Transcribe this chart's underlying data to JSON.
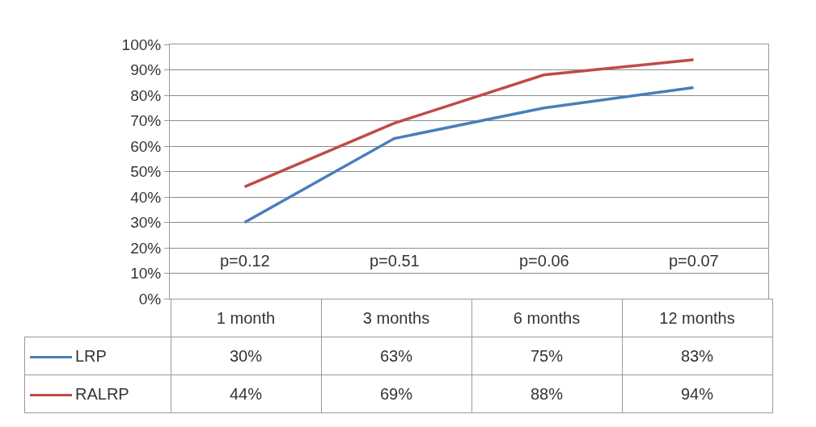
{
  "chart_data": {
    "type": "line",
    "categories": [
      "1 month",
      "3 months",
      "6 months",
      "12 months"
    ],
    "series": [
      {
        "name": "LRP",
        "color": "#4a7ebb",
        "values": [
          30,
          63,
          75,
          83
        ],
        "value_labels": [
          "30%",
          "63%",
          "75%",
          "83%"
        ]
      },
      {
        "name": "RALRP",
        "color": "#be4b48",
        "values": [
          44,
          69,
          88,
          94
        ],
        "value_labels": [
          "44%",
          "69%",
          "88%",
          "94%"
        ]
      }
    ],
    "ylim": [
      0,
      100
    ],
    "yticks": [
      {
        "value": 0,
        "label": "0%"
      },
      {
        "value": 10,
        "label": "10%"
      },
      {
        "value": 20,
        "label": "20%"
      },
      {
        "value": 30,
        "label": "30%"
      },
      {
        "value": 40,
        "label": "40%"
      },
      {
        "value": 50,
        "label": "50%"
      },
      {
        "value": 60,
        "label": "60%"
      },
      {
        "value": 70,
        "label": "70%"
      },
      {
        "value": 80,
        "label": "80%"
      },
      {
        "value": 90,
        "label": "90%"
      },
      {
        "value": 100,
        "label": "100%"
      }
    ],
    "annotations": [
      "p=0.12",
      "p=0.51",
      "p=0.06",
      "p=0.07"
    ],
    "grid": "y",
    "legend": "bottom left",
    "tick_labels": "y",
    "marker": "none",
    "line_style": "solid"
  }
}
